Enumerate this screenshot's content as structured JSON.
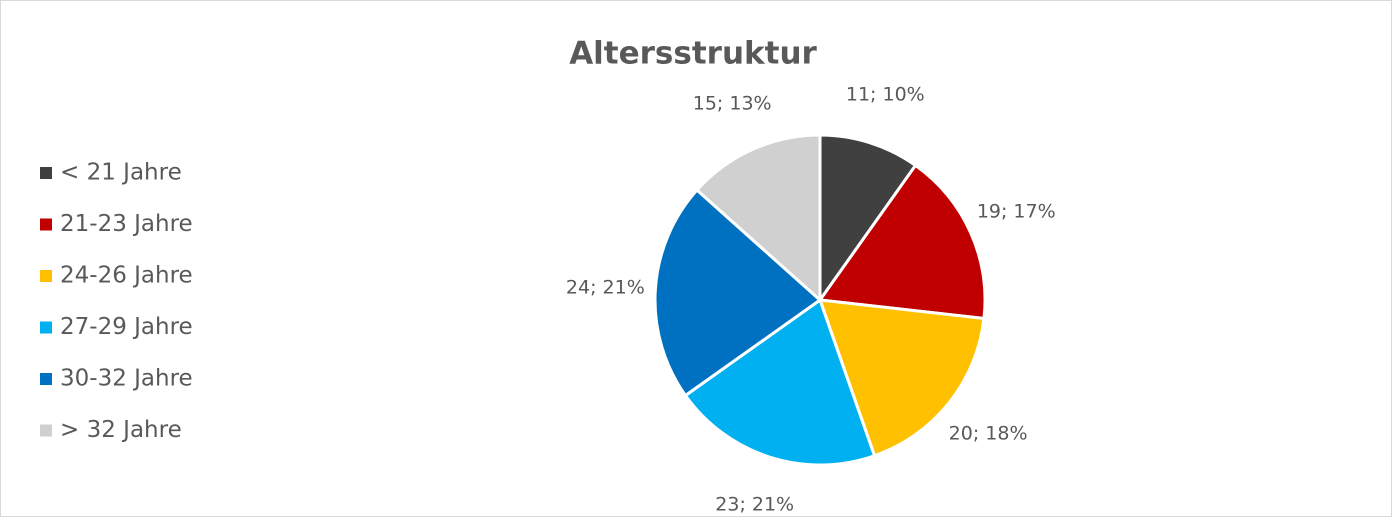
{
  "chart_data": {
    "type": "pie",
    "title": "Altersstruktur",
    "categories": [
      "< 21 Jahre",
      "21-23 Jahre",
      "24-26 Jahre",
      "27-29 Jahre",
      "30-32 Jahre",
      "> 32 Jahre"
    ],
    "values": [
      11,
      19,
      20,
      23,
      24,
      15
    ],
    "value_labels": [
      "11; 10%",
      "19; 17%",
      "20; 18%",
      "23; 21%",
      "24; 21%",
      "15; 13%"
    ],
    "colors": [
      "#404040",
      "#c00000",
      "#ffc000",
      "#00b0f0",
      "#0070c0",
      "#d0d0d0"
    ],
    "legend": "left"
  }
}
